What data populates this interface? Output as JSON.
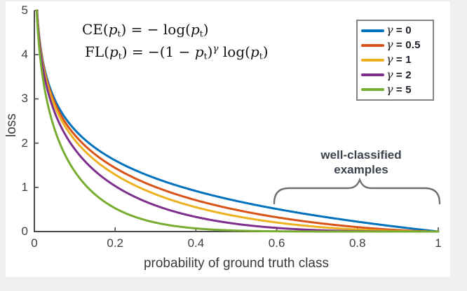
{
  "figure": {
    "page_background": "#eff0f2",
    "figure_background": "#ffffff"
  },
  "formulas": {
    "ce_tokens": [
      [
        "t",
        "CE("
      ],
      [
        "v",
        "p"
      ],
      [
        "s",
        "t"
      ],
      [
        "t",
        ") = − log("
      ],
      [
        "v",
        "p"
      ],
      [
        "s",
        "t"
      ],
      [
        "t",
        ")"
      ]
    ],
    "fl_tokens": [
      [
        "t",
        "FL("
      ],
      [
        "v",
        "p"
      ],
      [
        "s",
        "t"
      ],
      [
        "t",
        ") = −(1 − "
      ],
      [
        "v",
        "p"
      ],
      [
        "s",
        "t"
      ],
      [
        "t",
        ")"
      ],
      [
        "p",
        "γ"
      ],
      [
        "t",
        " log("
      ],
      [
        "v",
        "p"
      ],
      [
        "s",
        "t"
      ],
      [
        "t",
        ")"
      ]
    ]
  },
  "annotation": {
    "line1": "well-classified",
    "line2": "examples"
  },
  "chart_data": {
    "type": "line",
    "title": "",
    "xlabel": "probability of ground truth class",
    "ylabel": "loss",
    "xlim": [
      0,
      1
    ],
    "ylim": [
      0,
      5
    ],
    "xticks": [
      "0",
      "0.2",
      "0.4",
      "0.6",
      "0.8",
      "1"
    ],
    "xtick_values": [
      0,
      0.2,
      0.4,
      0.6,
      0.8,
      1
    ],
    "yticks": [
      "0",
      "1",
      "2",
      "3",
      "4",
      "5"
    ],
    "ytick_values": [
      0,
      1,
      2,
      3,
      4,
      5
    ],
    "grid": false,
    "legend_position": "top-right",
    "formula": "FL(p_t) = -(1 - p_t)^gamma * log(p_t), natural log, CE is gamma = 0",
    "x_samples": [
      0.01,
      0.05,
      0.1,
      0.2,
      0.3,
      0.4,
      0.5,
      0.6,
      0.7,
      0.8,
      0.9,
      1.0
    ],
    "series": [
      {
        "name": "γ = 0",
        "symbol": "γ",
        "value_label": "= 0",
        "gamma": 0,
        "color": "#0072BD",
        "values": [
          4.605,
          2.996,
          2.303,
          1.609,
          1.204,
          0.916,
          0.693,
          0.511,
          0.357,
          0.223,
          0.105,
          0
        ]
      },
      {
        "name": "γ = 0.5",
        "symbol": "γ",
        "value_label": "= 0.5",
        "gamma": 0.5,
        "color": "#D95319",
        "values": [
          4.582,
          2.921,
          2.185,
          1.439,
          1.008,
          0.71,
          0.49,
          0.323,
          0.195,
          0.1,
          0.033,
          0
        ]
      },
      {
        "name": "γ = 1",
        "symbol": "γ",
        "value_label": "= 1",
        "gamma": 1,
        "color": "#EDB120",
        "values": [
          4.559,
          2.846,
          2.072,
          1.287,
          0.843,
          0.55,
          0.347,
          0.204,
          0.107,
          0.045,
          0.011,
          0
        ]
      },
      {
        "name": "γ = 2",
        "symbol": "γ",
        "value_label": "= 2",
        "gamma": 2,
        "color": "#7E2F8E",
        "values": [
          4.513,
          2.704,
          1.865,
          1.03,
          0.59,
          0.33,
          0.173,
          0.082,
          0.032,
          0.009,
          0.001,
          0
        ]
      },
      {
        "name": "γ = 5",
        "symbol": "γ",
        "value_label": "= 5",
        "gamma": 5,
        "color": "#77AC30",
        "values": [
          4.38,
          2.321,
          1.36,
          0.527,
          0.202,
          0.071,
          0.022,
          0.005,
          0.001,
          0.0001,
          0.0,
          0
        ]
      }
    ],
    "axis_color": "#4a4a4a",
    "brace_color": "#6e6f71"
  }
}
